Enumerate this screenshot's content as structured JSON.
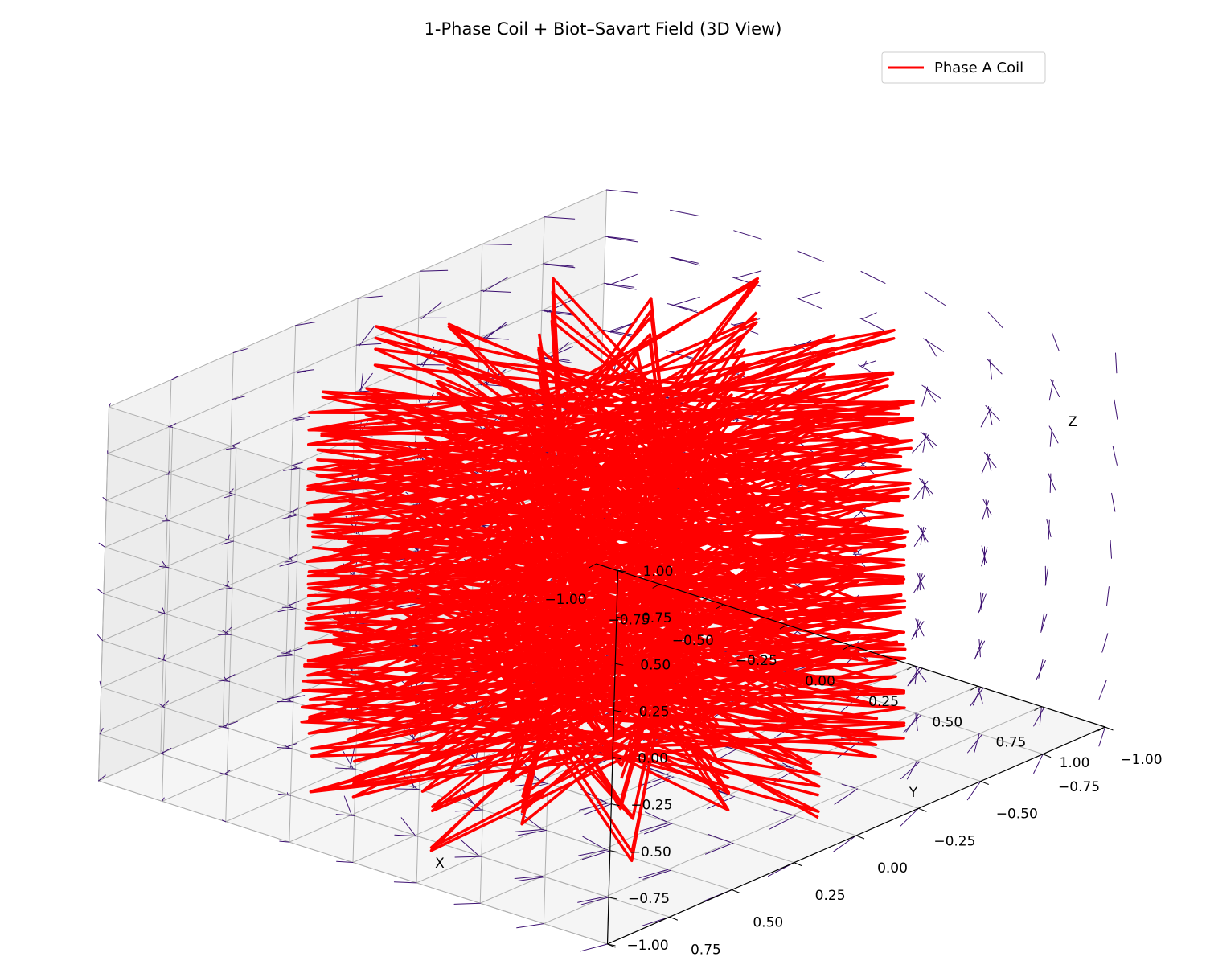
{
  "chart_data": {
    "type": "3d-quiver-line",
    "title": "1-Phase Coil + Biot–Savart Field (3D View)",
    "xlabel": "X",
    "ylabel": "Y",
    "zlabel": "Z",
    "xlim": [
      -1.0,
      1.0
    ],
    "ylim": [
      -1.0,
      1.0
    ],
    "zlim": [
      -1.0,
      1.0
    ],
    "xticks": [
      "−1.00",
      "−0.75",
      "−0.50",
      "−0.25",
      "0.00",
      "0.25",
      "0.50",
      "0.75",
      "1.00"
    ],
    "yticks": [
      "−1.00",
      "−0.75",
      "−0.50",
      "−0.25",
      "0.00",
      "0.25",
      "0.50",
      "0.75",
      "1.00"
    ],
    "zticks": [
      "−1.00",
      "−0.75",
      "−0.50",
      "−0.25",
      "0.00",
      "0.25",
      "0.50",
      "0.75",
      "1.00"
    ],
    "grid": true,
    "legend_position": "top-right",
    "series": [
      {
        "name": "Phase A Coil",
        "kind": "line",
        "color": "#ff0000",
        "turns": 13,
        "points_per_turn": 9,
        "radius": 0.85,
        "z_range": [
          -0.85,
          0.85
        ]
      },
      {
        "kind": "quiver",
        "color": "#3b0f70",
        "grid_spacing": 0.25,
        "field": "Biot–Savart magnetic field"
      }
    ]
  }
}
